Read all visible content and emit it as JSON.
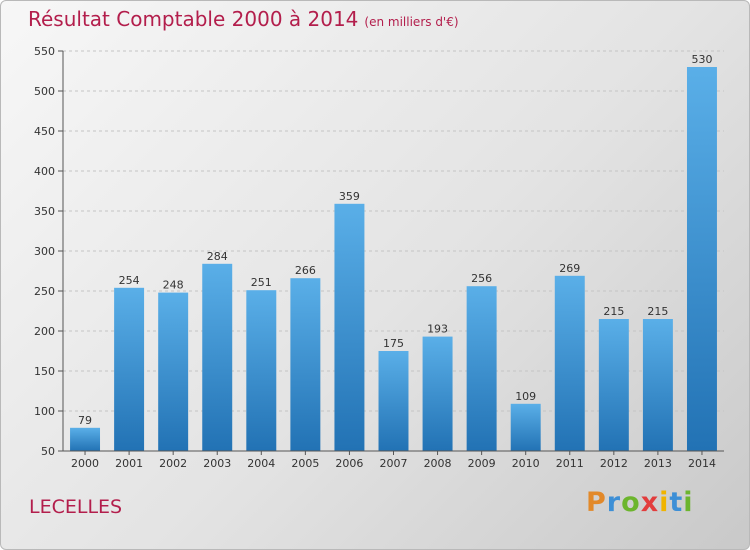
{
  "title": "Résultat Comptable 2000 à 2014",
  "subtitle": "(en milliers d'€)",
  "town": "LECELLES",
  "logo": {
    "letters": [
      "P",
      "r",
      "o",
      "x",
      "i",
      "t",
      "i"
    ],
    "colors": [
      "#e2892a",
      "#3d8fd6",
      "#6cb52d",
      "#e23c3c",
      "#f0b400",
      "#3d8fd6",
      "#6cb52d"
    ]
  },
  "chart_data": {
    "type": "bar",
    "title": "Résultat Comptable 2000 à 2014",
    "subtitle": "(en milliers d'€)",
    "categories": [
      "2000",
      "2001",
      "2002",
      "2003",
      "2004",
      "2005",
      "2006",
      "2007",
      "2008",
      "2009",
      "2010",
      "2011",
      "2012",
      "2013",
      "2014"
    ],
    "values": [
      79,
      254,
      248,
      284,
      251,
      266,
      359,
      175,
      193,
      256,
      109,
      269,
      215,
      215,
      530
    ],
    "ylim": [
      50,
      550
    ],
    "yticks": [
      50,
      100,
      150,
      200,
      250,
      300,
      350,
      400,
      450,
      500,
      550
    ],
    "grid": true,
    "bar_color": "#3d9be0"
  }
}
